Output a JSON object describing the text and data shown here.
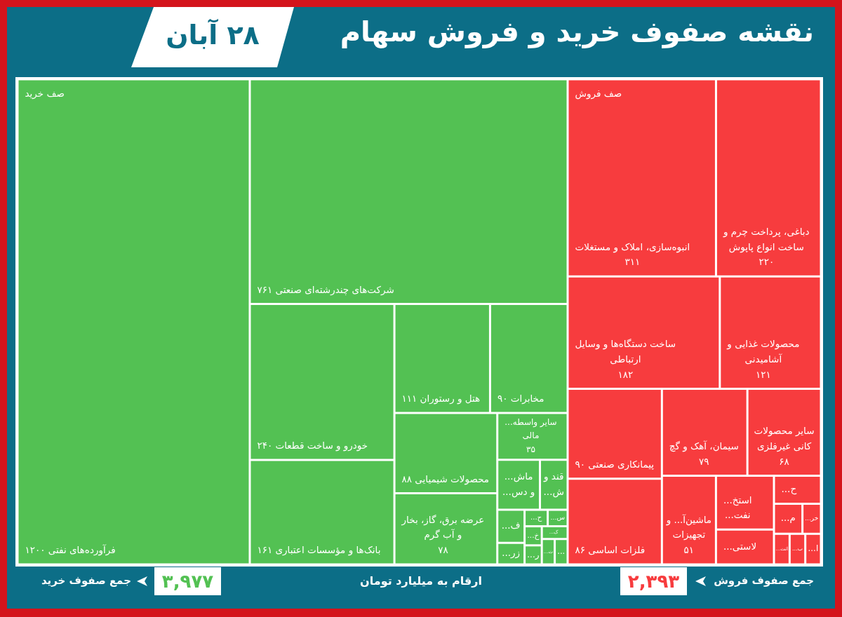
{
  "chart_data": [
    {
      "type": "other",
      "title": "نقشه صفوف خرید و فروش سهام",
      "subtitle": "۲۸ آبان",
      "annotations": [
        "ارقام به میلیارد تومان"
      ]
    },
    {
      "type": "other",
      "title": "صف خرید",
      "color": "#53c153",
      "categories": [
        "فرآورده‌های نفتی",
        "شرکت‌های چندرشته‌ای صنعتی",
        "خودرو و ساخت قطعات",
        "بانک‌ها و مؤسسات اعتباری",
        "هتل و رستوران",
        "مخابرات",
        "محصولات شیمیایی",
        "عرضه برق، گاز، بخار و آب گرم",
        "سایر واسطه... مالی",
        "ماش... و دس...",
        "قند و ش...",
        "ف...",
        "زر...",
        "ح...",
        "س...",
        "خ...",
        "ر...",
        "ک...",
        "ت...",
        "..."
      ],
      "values": [
        1200,
        761,
        240,
        161,
        111,
        90,
        88,
        78,
        35,
        null,
        null,
        null,
        null,
        null,
        null,
        null,
        null,
        null,
        null,
        null
      ],
      "value_labels": [
        "۱۲۰۰",
        "۷۶۱",
        "۲۴۰",
        "۱۶۱",
        "۱۱۱",
        "۹۰",
        "۸۸",
        "۷۸",
        "۳۵",
        null,
        null,
        null,
        null,
        null,
        null,
        null,
        null,
        null,
        null,
        null
      ],
      "annotations": [
        "جمع صفوف خرید",
        "۳,۹۷۷"
      ]
    },
    {
      "type": "other",
      "title": "صف فروش",
      "color": "#f73c3e",
      "categories": [
        "انبوه‌سازی، املاک و مستغلات",
        "دباغی، پرداخت چرم و ساخت انواع پاپوش",
        "ساخت دستگاه‌ها و وسایل ارتباطی",
        "محصولات غذایی و آشامیدنی",
        "پیمانکاری صنعتی",
        "فلزات اساسی",
        "سیمان، آهک و گچ",
        "سایر محصولات کانی غیرفلزی",
        "ماشین‌آ... و تجهیزات",
        "استخ... نفت...",
        "لاستی...",
        "ح...",
        "م...",
        "خر...",
        "انت...",
        "ب...",
        "ا..."
      ],
      "values": [
        311,
        220,
        182,
        121,
        90,
        86,
        79,
        68,
        51,
        null,
        null,
        null,
        null,
        null,
        null,
        null,
        null
      ],
      "value_labels": [
        "۳۱۱",
        "۲۲۰",
        "۱۸۲",
        "۱۲۱",
        "۹۰",
        "۸۶",
        "۷۹",
        "۶۸",
        "۵۱",
        null,
        null,
        null,
        null,
        null,
        null,
        null,
        null
      ],
      "annotations": [
        "جمع صفوف فروش",
        "۲,۳۹۳"
      ]
    }
  ]
}
